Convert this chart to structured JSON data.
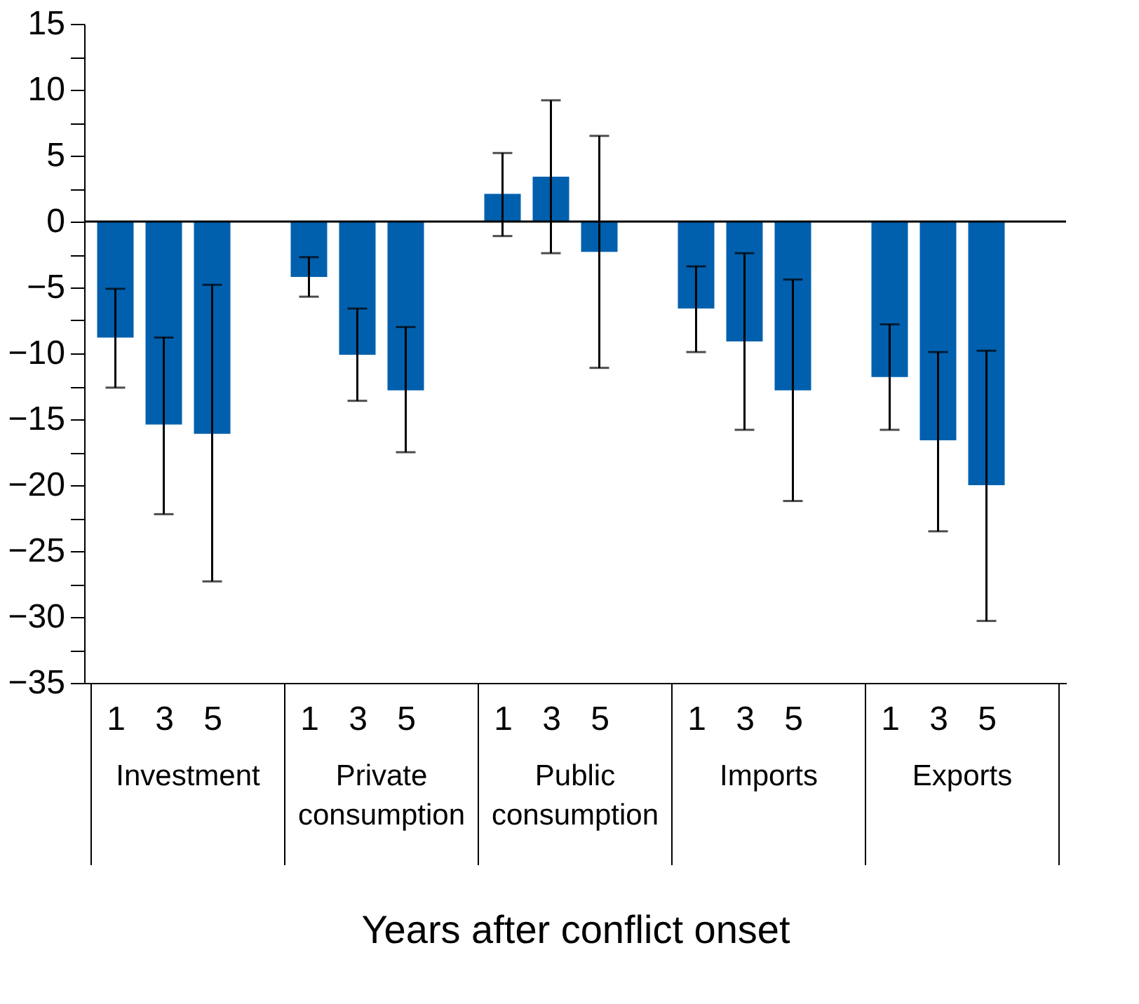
{
  "chart_data": {
    "type": "bar",
    "xlabel": "Years after conflict onset",
    "categories": [
      "1",
      "3",
      "5",
      "1",
      "3",
      "5",
      "1",
      "3",
      "5",
      "1",
      "3",
      "5",
      "1",
      "3",
      "5"
    ],
    "values": [
      -8.8,
      -15.4,
      -16.1,
      -4.2,
      -10.1,
      -12.8,
      2.1,
      3.4,
      -2.3,
      -6.6,
      -9.1,
      -12.8,
      -11.8,
      -16.6,
      -20.0
    ],
    "errors": [
      [
        -12.6,
        -5.1
      ],
      [
        -22.2,
        -8.8
      ],
      [
        -27.3,
        -4.8
      ],
      [
        -5.7,
        -2.7
      ],
      [
        -13.6,
        -6.6
      ],
      [
        -17.5,
        -8.0
      ],
      [
        -1.1,
        5.2
      ],
      [
        -2.4,
        9.2
      ],
      [
        -11.1,
        6.5
      ],
      [
        -9.9,
        -3.4
      ],
      [
        -15.8,
        -2.4
      ],
      [
        -21.2,
        -4.4
      ],
      [
        -15.8,
        -7.8
      ],
      [
        -23.5,
        -9.9
      ],
      [
        -30.3,
        -9.8
      ]
    ],
    "color": "#0060ae",
    "annotations": [
      "Investment",
      "Private consumption",
      "Public consumption",
      "Imports",
      "Exports"
    ],
    "ylim": [
      -35,
      15
    ],
    "yticks": [
      {
        "value": -35,
        "label": "−35"
      },
      {
        "value": -32.5,
        "label": null
      },
      {
        "value": -30,
        "label": "−30"
      },
      {
        "value": -27.5,
        "label": null
      },
      {
        "value": -25,
        "label": "−25"
      },
      {
        "value": -22.5,
        "label": null
      },
      {
        "value": -20,
        "label": "−20"
      },
      {
        "value": -17.5,
        "label": null
      },
      {
        "value": -15,
        "label": "−15"
      },
      {
        "value": -12.5,
        "label": null
      },
      {
        "value": -10,
        "label": "−10"
      },
      {
        "value": -7.5,
        "label": null
      },
      {
        "value": -5,
        "label": "−5"
      },
      {
        "value": -2.5,
        "label": null
      },
      0,
      {
        "value": 2.5,
        "label": null
      },
      5,
      {
        "value": 7.5,
        "label": null
      },
      10,
      {
        "value": 12.5,
        "label": null
      },
      15
    ],
    "ref_lines": [
      {
        "axis": "y",
        "value": 0,
        "color": "#000000"
      }
    ],
    "grid": false
  }
}
